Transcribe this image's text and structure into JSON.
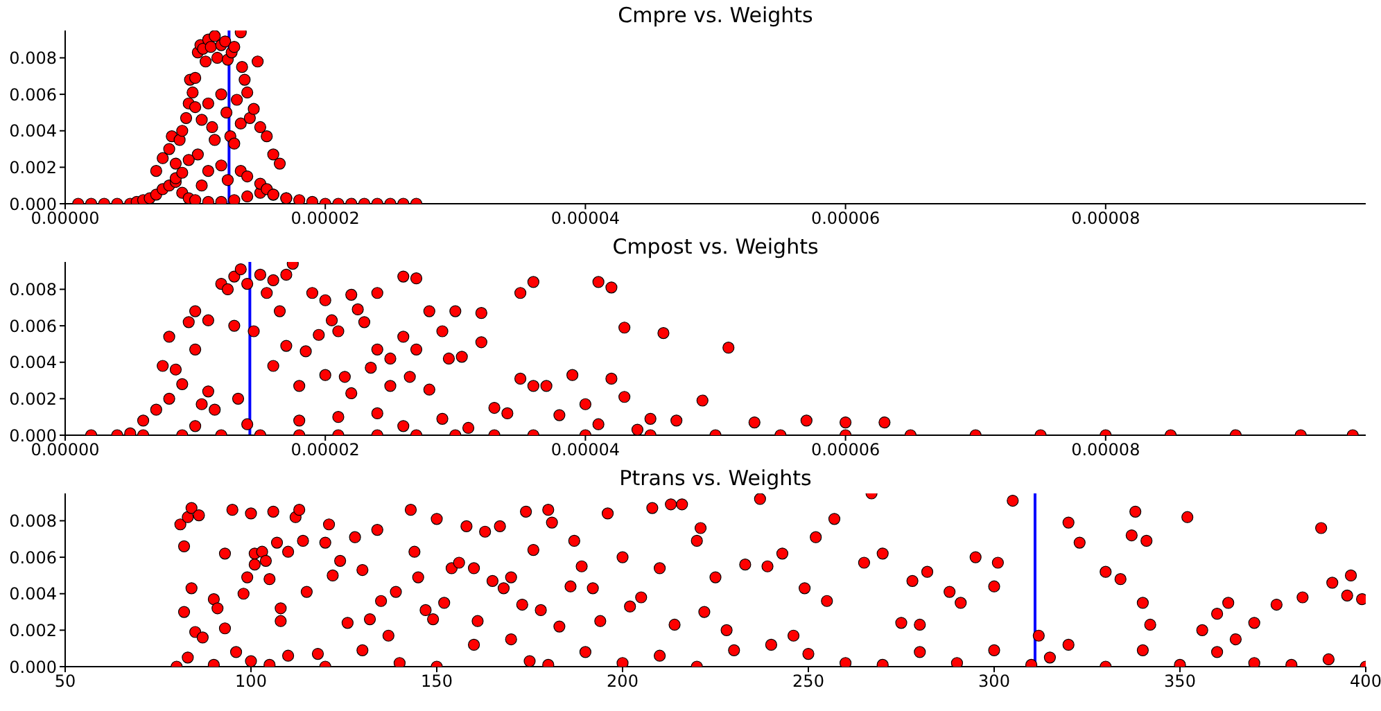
{
  "chart_data": [
    {
      "type": "scatter",
      "title": "Cmpre vs. Weights",
      "marker": "circle",
      "grid": false,
      "xlim": [
        0,
        0.0001
      ],
      "xticks": [
        {
          "value": 0,
          "label": "0.00000"
        },
        {
          "value": 2e-05,
          "label": "0.00002"
        },
        {
          "value": 4e-05,
          "label": "0.00004"
        },
        {
          "value": 6e-05,
          "label": "0.00006"
        },
        {
          "value": 8e-05,
          "label": "0.00008"
        }
      ],
      "ylim": [
        0,
        0.0095
      ],
      "yticks": [
        {
          "value": 0,
          "label": "0.000"
        },
        {
          "value": 0.002,
          "label": "0.002"
        },
        {
          "value": 0.004,
          "label": "0.004"
        },
        {
          "value": 0.006,
          "label": "0.006"
        },
        {
          "value": 0.008,
          "label": "0.008"
        }
      ],
      "ref_lines": [
        {
          "axis": "x",
          "value": 1.26e-05,
          "color": "#0000ff"
        }
      ],
      "series": [
        {
          "color": "#ff0000",
          "x": [
            1e-06,
            2e-06,
            3e-06,
            4e-06,
            5e-06,
            5.5e-06,
            6e-06,
            6.5e-06,
            7e-06,
            7.5e-06,
            8e-06,
            8.5e-06,
            9e-06,
            9.5e-06,
            1e-05,
            1.1e-05,
            1.2e-05,
            1.3e-05,
            1.4e-05,
            1.5e-05,
            1.6e-05,
            1.7e-05,
            1.8e-05,
            1.9e-05,
            2e-05,
            2.1e-05,
            2.2e-05,
            2.3e-05,
            2.4e-05,
            2.5e-05,
            2.6e-05,
            2.7e-05,
            7e-06,
            7.5e-06,
            8e-06,
            8.2e-06,
            8.5e-06,
            8.8e-06,
            9e-06,
            9.3e-06,
            9.5e-06,
            9.6e-06,
            9.8e-06,
            1e-05,
            1.02e-05,
            1.04e-05,
            1.06e-05,
            1.08e-05,
            1.1e-05,
            1.12e-05,
            1.15e-05,
            1.17e-05,
            1.2e-05,
            1.23e-05,
            1.25e-05,
            1.28e-05,
            1.3e-05,
            1.35e-05,
            1e-05,
            1.05e-05,
            1.1e-05,
            1.13e-05,
            1.15e-05,
            1.2e-05,
            1.24e-05,
            1.27e-05,
            1.3e-05,
            1.32e-05,
            1.35e-05,
            1.38e-05,
            1.4e-05,
            1.42e-05,
            1.45e-05,
            1.5e-05,
            1.55e-05,
            1.6e-05,
            1.65e-05,
            1.02e-05,
            1.1e-05,
            1.2e-05,
            1.25e-05,
            1.35e-05,
            1.4e-05,
            1.5e-05,
            1.55e-05,
            1.6e-05,
            1.7e-05,
            1.48e-05,
            1.36e-05,
            8.5e-06,
            9e-06,
            9.5e-06,
            1.05e-05
          ],
          "values": [
            0,
            0,
            0,
            0,
            0,
            0.0001,
            0.0002,
            0.0003,
            0.0005,
            0.0008,
            0.001,
            0.0012,
            0.0006,
            0.0003,
            0.0002,
            0.0001,
            0.0001,
            0.0002,
            0.0004,
            0.0006,
            0.0005,
            0.0003,
            0.0002,
            0.0001,
            0,
            0,
            0,
            0,
            0,
            0,
            0,
            0,
            0.0018,
            0.0025,
            0.003,
            0.0037,
            0.0022,
            0.0035,
            0.004,
            0.0047,
            0.0055,
            0.0068,
            0.0061,
            0.0069,
            0.0083,
            0.0087,
            0.0085,
            0.0078,
            0.009,
            0.0086,
            0.0092,
            0.008,
            0.0087,
            0.0089,
            0.0079,
            0.0083,
            0.0086,
            0.0094,
            0.0053,
            0.0046,
            0.0055,
            0.0042,
            0.0035,
            0.006,
            0.005,
            0.0037,
            0.0033,
            0.0057,
            0.0044,
            0.0068,
            0.0061,
            0.0047,
            0.0052,
            0.0042,
            0.0037,
            0.0027,
            0.0022,
            0.0027,
            0.0018,
            0.0021,
            0.0013,
            0.0018,
            0.0015,
            0.0011,
            0.0008,
            0.0005,
            0.0003,
            0.0078,
            0.0075,
            0.0014,
            0.0017,
            0.0024,
            0.001
          ]
        }
      ]
    },
    {
      "type": "scatter",
      "title": "Cmpost vs. Weights",
      "marker": "circle",
      "grid": false,
      "xlim": [
        0,
        0.0001
      ],
      "xticks": [
        {
          "value": 0,
          "label": "0.00000"
        },
        {
          "value": 2e-05,
          "label": "0.00002"
        },
        {
          "value": 4e-05,
          "label": "0.00004"
        },
        {
          "value": 6e-05,
          "label": "0.00006"
        },
        {
          "value": 8e-05,
          "label": "0.00008"
        }
      ],
      "ylim": [
        0,
        0.0095
      ],
      "yticks": [
        {
          "value": 0,
          "label": "0.000"
        },
        {
          "value": 0.002,
          "label": "0.002"
        },
        {
          "value": 0.004,
          "label": "0.004"
        },
        {
          "value": 0.006,
          "label": "0.006"
        },
        {
          "value": 0.008,
          "label": "0.008"
        }
      ],
      "ref_lines": [
        {
          "axis": "x",
          "value": 1.42e-05,
          "color": "#0000ff"
        }
      ],
      "series": [
        {
          "color": "#ff0000",
          "x": [
            5e-06,
            6e-06,
            7e-06,
            7.5e-06,
            8e-06,
            8e-06,
            8.5e-06,
            9e-06,
            9.5e-06,
            1e-05,
            1e-05,
            1.05e-05,
            1.1e-05,
            1.1e-05,
            1.15e-05,
            1.2e-05,
            1.25e-05,
            1.3e-05,
            1.35e-05,
            1.3e-05,
            1.33e-05,
            1.4e-05,
            1.45e-05,
            1.5e-05,
            1.55e-05,
            1.6e-05,
            1.6e-05,
            1.65e-05,
            1.7e-05,
            1.7e-05,
            1.75e-05,
            1.8e-05,
            1.85e-05,
            1.9e-05,
            1.95e-05,
            2e-05,
            2e-05,
            2.05e-05,
            2.1e-05,
            2.15e-05,
            2.2e-05,
            2.2e-05,
            2.25e-05,
            2.3e-05,
            2.35e-05,
            2.4e-05,
            2.4e-05,
            2.5e-05,
            2.5e-05,
            2.6e-05,
            2.6e-05,
            2.65e-05,
            2.7e-05,
            2.7e-05,
            2.8e-05,
            2.8e-05,
            2.9e-05,
            2.95e-05,
            3e-05,
            3.05e-05,
            3.2e-05,
            3.2e-05,
            3.3e-05,
            3.5e-05,
            3.5e-05,
            3.6e-05,
            3.6e-05,
            3.7e-05,
            3.9e-05,
            4e-05,
            4.1e-05,
            4.2e-05,
            4.2e-05,
            4.3e-05,
            4.3e-05,
            4.5e-05,
            4.6e-05,
            4.7e-05,
            4.9e-05,
            5.1e-05,
            5.3e-05,
            5.7e-05,
            6e-05,
            6.3e-05,
            2e-06,
            4e-06,
            6e-06,
            9e-06,
            1.2e-05,
            1.5e-05,
            1.8e-05,
            2.1e-05,
            2.4e-05,
            2.7e-05,
            3e-05,
            3.3e-05,
            3.6e-05,
            4e-05,
            4.5e-05,
            5e-05,
            5.5e-05,
            6e-05,
            6.5e-05,
            7e-05,
            7.5e-05,
            8e-05,
            8.5e-05,
            9e-05,
            9.5e-05,
            9.9e-05,
            1e-05,
            1.4e-05,
            1.8e-05,
            2.1e-05,
            2.4e-05,
            2.6e-05,
            2.9e-05,
            3.1e-05,
            3.4e-05,
            3.8e-05,
            4.1e-05,
            4.4e-05
          ],
          "values": [
            0.0001,
            0.0008,
            0.0014,
            0.0038,
            0.0054,
            0.002,
            0.0036,
            0.0028,
            0.0062,
            0.0068,
            0.0047,
            0.0017,
            0.0063,
            0.0024,
            0.0014,
            0.0083,
            0.008,
            0.0087,
            0.0091,
            0.006,
            0.002,
            0.0083,
            0.0057,
            0.0088,
            0.0078,
            0.0085,
            0.0038,
            0.0068,
            0.0088,
            0.0049,
            0.0094,
            0.0027,
            0.0046,
            0.0078,
            0.0055,
            0.0074,
            0.0033,
            0.0063,
            0.0057,
            0.0032,
            0.0077,
            0.0023,
            0.0069,
            0.0062,
            0.0037,
            0.0078,
            0.0047,
            0.0042,
            0.0027,
            0.0087,
            0.0054,
            0.0032,
            0.0086,
            0.0047,
            0.0068,
            0.0025,
            0.0057,
            0.0042,
            0.0068,
            0.0043,
            0.0067,
            0.0051,
            0.0015,
            0.0078,
            0.0031,
            0.0084,
            0.0027,
            0.0027,
            0.0033,
            0.0017,
            0.0084,
            0.0081,
            0.0031,
            0.0059,
            0.0021,
            0.0009,
            0.0056,
            0.0008,
            0.0019,
            0.0048,
            0.0007,
            0.0008,
            0.0007,
            0.0007,
            0,
            0,
            0,
            0,
            0,
            0,
            0,
            0,
            0,
            0,
            0,
            0,
            0,
            0,
            0,
            0,
            0,
            0,
            0,
            0,
            0,
            0,
            0,
            0,
            0,
            0,
            0.0005,
            0.0006,
            0.0008,
            0.001,
            0.0012,
            0.0005,
            0.0009,
            0.0004,
            0.0012,
            0.0011,
            0.0006,
            0.0003
          ]
        }
      ]
    },
    {
      "type": "scatter",
      "title": "Ptrans vs. Weights",
      "marker": "circle",
      "grid": false,
      "xlim": [
        50,
        400
      ],
      "xticks": [
        50,
        100,
        150,
        200,
        250,
        300,
        350,
        400
      ],
      "ylim": [
        0,
        0.0095
      ],
      "yticks": [
        {
          "value": 0,
          "label": "0.000"
        },
        {
          "value": 0.002,
          "label": "0.002"
        },
        {
          "value": 0.004,
          "label": "0.004"
        },
        {
          "value": 0.006,
          "label": "0.006"
        },
        {
          "value": 0.008,
          "label": "0.008"
        }
      ],
      "ref_lines": [
        {
          "axis": "x",
          "value": 311,
          "color": "#0000ff"
        }
      ],
      "series": [
        {
          "color": "#ff0000",
          "x": [
            81,
            82,
            82,
            83,
            84,
            84,
            85,
            86,
            87,
            90,
            91,
            93,
            93,
            95,
            96,
            98,
            99,
            100,
            101,
            101,
            103,
            104,
            105,
            106,
            107,
            108,
            108,
            110,
            112,
            113,
            114,
            115,
            118,
            120,
            121,
            122,
            124,
            126,
            128,
            130,
            132,
            134,
            135,
            137,
            139,
            143,
            144,
            145,
            147,
            149,
            150,
            152,
            154,
            156,
            158,
            160,
            161,
            163,
            165,
            167,
            168,
            170,
            173,
            174,
            176,
            178,
            180,
            181,
            183,
            186,
            187,
            189,
            192,
            194,
            196,
            200,
            202,
            205,
            208,
            210,
            213,
            214,
            216,
            220,
            221,
            222,
            225,
            228,
            233,
            237,
            239,
            243,
            246,
            249,
            252,
            255,
            257,
            265,
            267,
            270,
            275,
            278,
            280,
            282,
            288,
            291,
            295,
            300,
            301,
            305,
            312,
            320,
            323,
            330,
            334,
            337,
            338,
            340,
            341,
            342,
            352,
            356,
            360,
            363,
            365,
            370,
            376,
            383,
            388,
            391,
            395,
            396,
            399,
            80,
            83,
            90,
            100,
            105,
            110,
            120,
            130,
            140,
            150,
            160,
            170,
            175,
            180,
            190,
            200,
            210,
            220,
            230,
            240,
            250,
            260,
            270,
            280,
            290,
            300,
            310,
            315,
            320,
            330,
            340,
            350,
            360,
            370,
            380,
            390,
            400
          ],
          "values": [
            0.0078,
            0.0066,
            0.003,
            0.0082,
            0.0087,
            0.0043,
            0.0019,
            0.0083,
            0.0016,
            0.0037,
            0.0032,
            0.0062,
            0.0021,
            0.0086,
            0.0008,
            0.004,
            0.0049,
            0.0084,
            0.0062,
            0.0056,
            0.0063,
            0.0058,
            0.0048,
            0.0085,
            0.0068,
            0.0032,
            0.0025,
            0.0063,
            0.0082,
            0.0086,
            0.0069,
            0.0041,
            0.0007,
            0.0068,
            0.0078,
            0.005,
            0.0058,
            0.0024,
            0.0071,
            0.0053,
            0.0026,
            0.0075,
            0.0036,
            0.0017,
            0.0041,
            0.0086,
            0.0063,
            0.0049,
            0.0031,
            0.0026,
            0.0081,
            0.0035,
            0.0054,
            0.0057,
            0.0077,
            0.0054,
            0.0025,
            0.0074,
            0.0047,
            0.0077,
            0.0043,
            0.0049,
            0.0034,
            0.0085,
            0.0064,
            0.0031,
            0.0086,
            0.0079,
            0.0022,
            0.0044,
            0.0069,
            0.0055,
            0.0043,
            0.0025,
            0.0084,
            0.006,
            0.0033,
            0.0038,
            0.0087,
            0.0054,
            0.0089,
            0.0023,
            0.0089,
            0.0069,
            0.0076,
            0.003,
            0.0049,
            0.002,
            0.0056,
            0.0092,
            0.0055,
            0.0062,
            0.0017,
            0.0043,
            0.0071,
            0.0036,
            0.0081,
            0.0057,
            0.0095,
            0.0062,
            0.0024,
            0.0047,
            0.0023,
            0.0052,
            0.0041,
            0.0035,
            0.006,
            0.0044,
            0.0057,
            0.0091,
            0.0017,
            0.0079,
            0.0068,
            0.0052,
            0.0048,
            0.0072,
            0.0085,
            0.0035,
            0.0069,
            0.0023,
            0.0082,
            0.002,
            0.0029,
            0.0035,
            0.0015,
            0.0024,
            0.0034,
            0.0038,
            0.0076,
            0.0046,
            0.0039,
            0.005,
            0.0037,
            0,
            0.0005,
            0.0001,
            0.0003,
            0.0001,
            0.0006,
            0,
            0.0009,
            0.0002,
            0,
            0.0012,
            0.0015,
            0.0003,
            0.0001,
            0.0008,
            0.0002,
            0.0006,
            0,
            0.0009,
            0.0012,
            0.0007,
            0.0002,
            0.0001,
            0.0008,
            0.0002,
            0.0009,
            0.0001,
            0.0005,
            0.0012,
            0,
            0.0009,
            0.0001,
            0.0008,
            0.0002,
            0.0001,
            0.0004,
            0
          ]
        }
      ]
    }
  ]
}
